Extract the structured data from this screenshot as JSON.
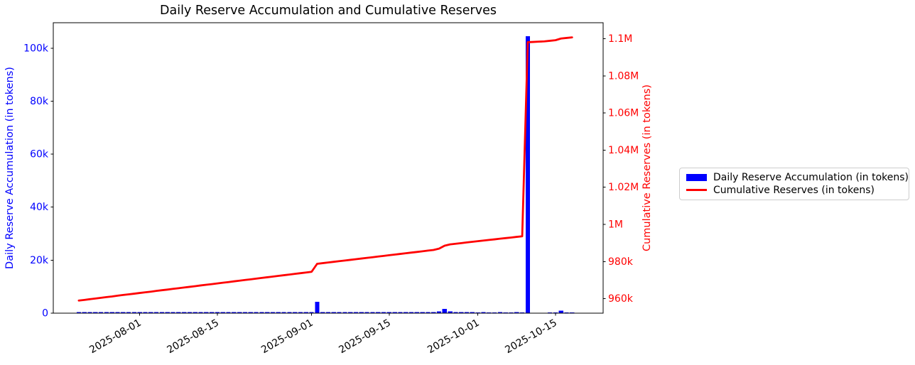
{
  "figure": {
    "background": "#ffffff"
  },
  "chart_data": {
    "type": "bar",
    "title": "Daily Reserve Accumulation and Cumulative Reserves",
    "legend_location": "outside center right",
    "grid": false,
    "x": [
      "2025-07-21",
      "2025-07-22",
      "2025-07-23",
      "2025-07-24",
      "2025-07-25",
      "2025-07-26",
      "2025-07-27",
      "2025-07-28",
      "2025-07-29",
      "2025-07-30",
      "2025-07-31",
      "2025-08-01",
      "2025-08-02",
      "2025-08-03",
      "2025-08-04",
      "2025-08-05",
      "2025-08-06",
      "2025-08-07",
      "2025-08-08",
      "2025-08-09",
      "2025-08-10",
      "2025-08-11",
      "2025-08-12",
      "2025-08-13",
      "2025-08-14",
      "2025-08-15",
      "2025-08-16",
      "2025-08-17",
      "2025-08-18",
      "2025-08-19",
      "2025-08-20",
      "2025-08-21",
      "2025-08-22",
      "2025-08-23",
      "2025-08-24",
      "2025-08-25",
      "2025-08-26",
      "2025-08-27",
      "2025-08-28",
      "2025-08-29",
      "2025-08-30",
      "2025-08-31",
      "2025-09-01",
      "2025-09-02",
      "2025-09-03",
      "2025-09-04",
      "2025-09-05",
      "2025-09-06",
      "2025-09-07",
      "2025-09-08",
      "2025-09-09",
      "2025-09-10",
      "2025-09-11",
      "2025-09-12",
      "2025-09-13",
      "2025-09-14",
      "2025-09-15",
      "2025-09-16",
      "2025-09-17",
      "2025-09-18",
      "2025-09-19",
      "2025-09-20",
      "2025-09-21",
      "2025-09-22",
      "2025-09-23",
      "2025-09-24",
      "2025-09-25",
      "2025-09-26",
      "2025-09-27",
      "2025-09-28",
      "2025-09-29",
      "2025-09-30",
      "2025-10-01",
      "2025-10-02",
      "2025-10-03",
      "2025-10-04",
      "2025-10-05",
      "2025-10-06",
      "2025-10-07",
      "2025-10-08",
      "2025-10-09",
      "2025-10-10",
      "2025-10-11",
      "2025-10-12",
      "2025-10-13",
      "2025-10-14",
      "2025-10-15",
      "2025-10-16",
      "2025-10-17",
      "2025-10-18"
    ],
    "series": [
      {
        "name": "Daily Reserve Accumulation (in tokens)",
        "type": "bar",
        "axis": "left",
        "color": "#0000ff",
        "values": [
          380,
          350,
          400,
          370,
          360,
          390,
          340,
          410,
          380,
          360,
          350,
          380,
          360,
          350,
          400,
          370,
          340,
          390,
          360,
          380,
          350,
          370,
          400,
          360,
          340,
          380,
          370,
          350,
          390,
          360,
          380,
          340,
          370,
          400,
          350,
          360,
          380,
          370,
          340,
          390,
          360,
          370,
          380,
          4300,
          360,
          340,
          370,
          350,
          360,
          340,
          370,
          350,
          360,
          340,
          370,
          350,
          360,
          340,
          370,
          350,
          360,
          340,
          370,
          350,
          360,
          700,
          1600,
          700,
          340,
          350,
          360,
          340,
          330,
          340,
          320,
          330,
          340,
          320,
          330,
          340,
          320,
          104500,
          150,
          160,
          150,
          310,
          320,
          900,
          310,
          300
        ]
      },
      {
        "name": "Cumulative Reserves (in tokens)",
        "type": "line",
        "axis": "right",
        "color": "#ff0000",
        "values": [
          958980,
          959330,
          959730,
          960100,
          960460,
          960850,
          961190,
          961600,
          961980,
          962340,
          962690,
          963070,
          963430,
          963780,
          964180,
          964550,
          964890,
          965280,
          965640,
          966020,
          966370,
          966740,
          967140,
          967500,
          967840,
          968220,
          968590,
          968940,
          969330,
          969690,
          970070,
          970410,
          970780,
          971180,
          971530,
          971890,
          972270,
          972640,
          972980,
          973370,
          973730,
          974100,
          974480,
          978780,
          979140,
          979480,
          979850,
          980200,
          980560,
          980900,
          981270,
          981620,
          981980,
          982320,
          982690,
          983040,
          983400,
          983740,
          984110,
          984460,
          984820,
          985160,
          985530,
          985880,
          986240,
          986940,
          988540,
          989240,
          989580,
          989930,
          990290,
          990630,
          990960,
          991300,
          991620,
          991950,
          992290,
          992610,
          992940,
          993280,
          993600,
          1098100,
          1098250,
          1098410,
          1098560,
          1098870,
          1099190,
          1100090,
          1100400,
          1100700
        ]
      }
    ],
    "left_axis": {
      "label": "Daily Reserve Accumulation (in tokens)",
      "color": "#0000ff",
      "ticks": [
        {
          "value": 0,
          "label": "0"
        },
        {
          "value": 20000,
          "label": "20k"
        },
        {
          "value": 40000,
          "label": "40k"
        },
        {
          "value": 60000,
          "label": "60k"
        },
        {
          "value": 80000,
          "label": "80k"
        },
        {
          "value": 100000,
          "label": "100k"
        }
      ]
    },
    "right_axis": {
      "label": "Cumulative Reserves (in tokens)",
      "color": "#ff0000",
      "ticks": [
        {
          "value": 960000,
          "label": "960k"
        },
        {
          "value": 980000,
          "label": "980k"
        },
        {
          "value": 1000000,
          "label": "1M"
        },
        {
          "value": 1020000,
          "label": "1.02M"
        },
        {
          "value": 1040000,
          "label": "1.04M"
        },
        {
          "value": 1060000,
          "label": "1.06M"
        },
        {
          "value": 1080000,
          "label": "1.08M"
        },
        {
          "value": 1100000,
          "label": "1.1M"
        }
      ]
    },
    "x_axis": {
      "tick_color": "#000000",
      "ticks": [
        {
          "index": 11,
          "label": "2025-08-01"
        },
        {
          "index": 25,
          "label": "2025-08-15"
        },
        {
          "index": 42,
          "label": "2025-09-01"
        },
        {
          "index": 56,
          "label": "2025-09-15"
        },
        {
          "index": 72,
          "label": "2025-10-01"
        },
        {
          "index": 86,
          "label": "2025-10-15"
        }
      ]
    },
    "ylim_left": [
      0,
      109600
    ],
    "ylim_right": [
      952200,
      1108600
    ],
    "xlim_index": [
      -4.6,
      94.6
    ],
    "bar_width_days": 0.8
  }
}
